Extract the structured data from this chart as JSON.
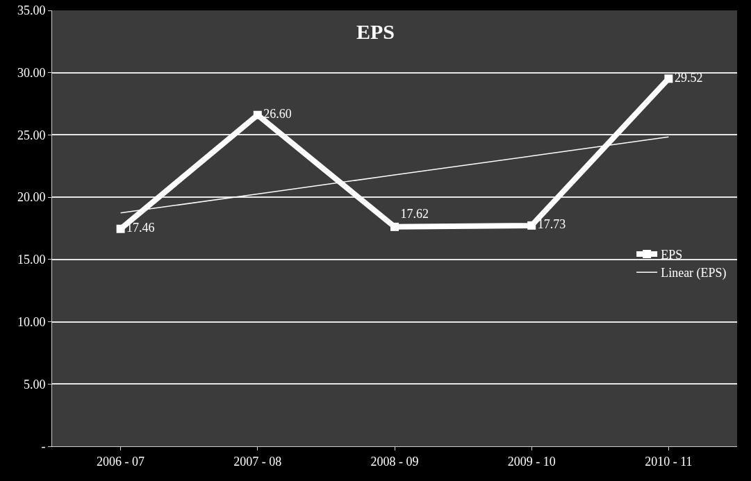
{
  "chart_data": {
    "type": "line",
    "title": "EPS",
    "categories": [
      "2006 - 07",
      "2007 - 08",
      "2008 - 09",
      "2009 - 10",
      "2010 - 11"
    ],
    "series": [
      {
        "name": "EPS",
        "color": "#ffffff",
        "values": [
          17.46,
          26.6,
          17.62,
          17.73,
          29.52
        ],
        "value_labels": [
          "17.46",
          "26.60",
          "17.62",
          "17.73",
          "29.52"
        ],
        "marker": "square"
      },
      {
        "name": "Linear (EPS)",
        "type": "line",
        "color": "#ffffff",
        "values": [
          18.74,
          20.26,
          21.79,
          23.31,
          24.84
        ],
        "marker": "none"
      }
    ],
    "ylim": [
      0,
      35
    ],
    "yticks": [
      {
        "value": 0,
        "label": "-"
      },
      {
        "value": 5,
        "label": "5.00"
      },
      {
        "value": 10,
        "label": "10.00"
      },
      {
        "value": 15,
        "label": "15.00"
      },
      {
        "value": 20,
        "label": "20.00"
      },
      {
        "value": 25,
        "label": "25.00"
      },
      {
        "value": 30,
        "label": "30.00"
      },
      {
        "value": 35,
        "label": "35.00"
      }
    ],
    "grid": "y",
    "legend": "right"
  }
}
